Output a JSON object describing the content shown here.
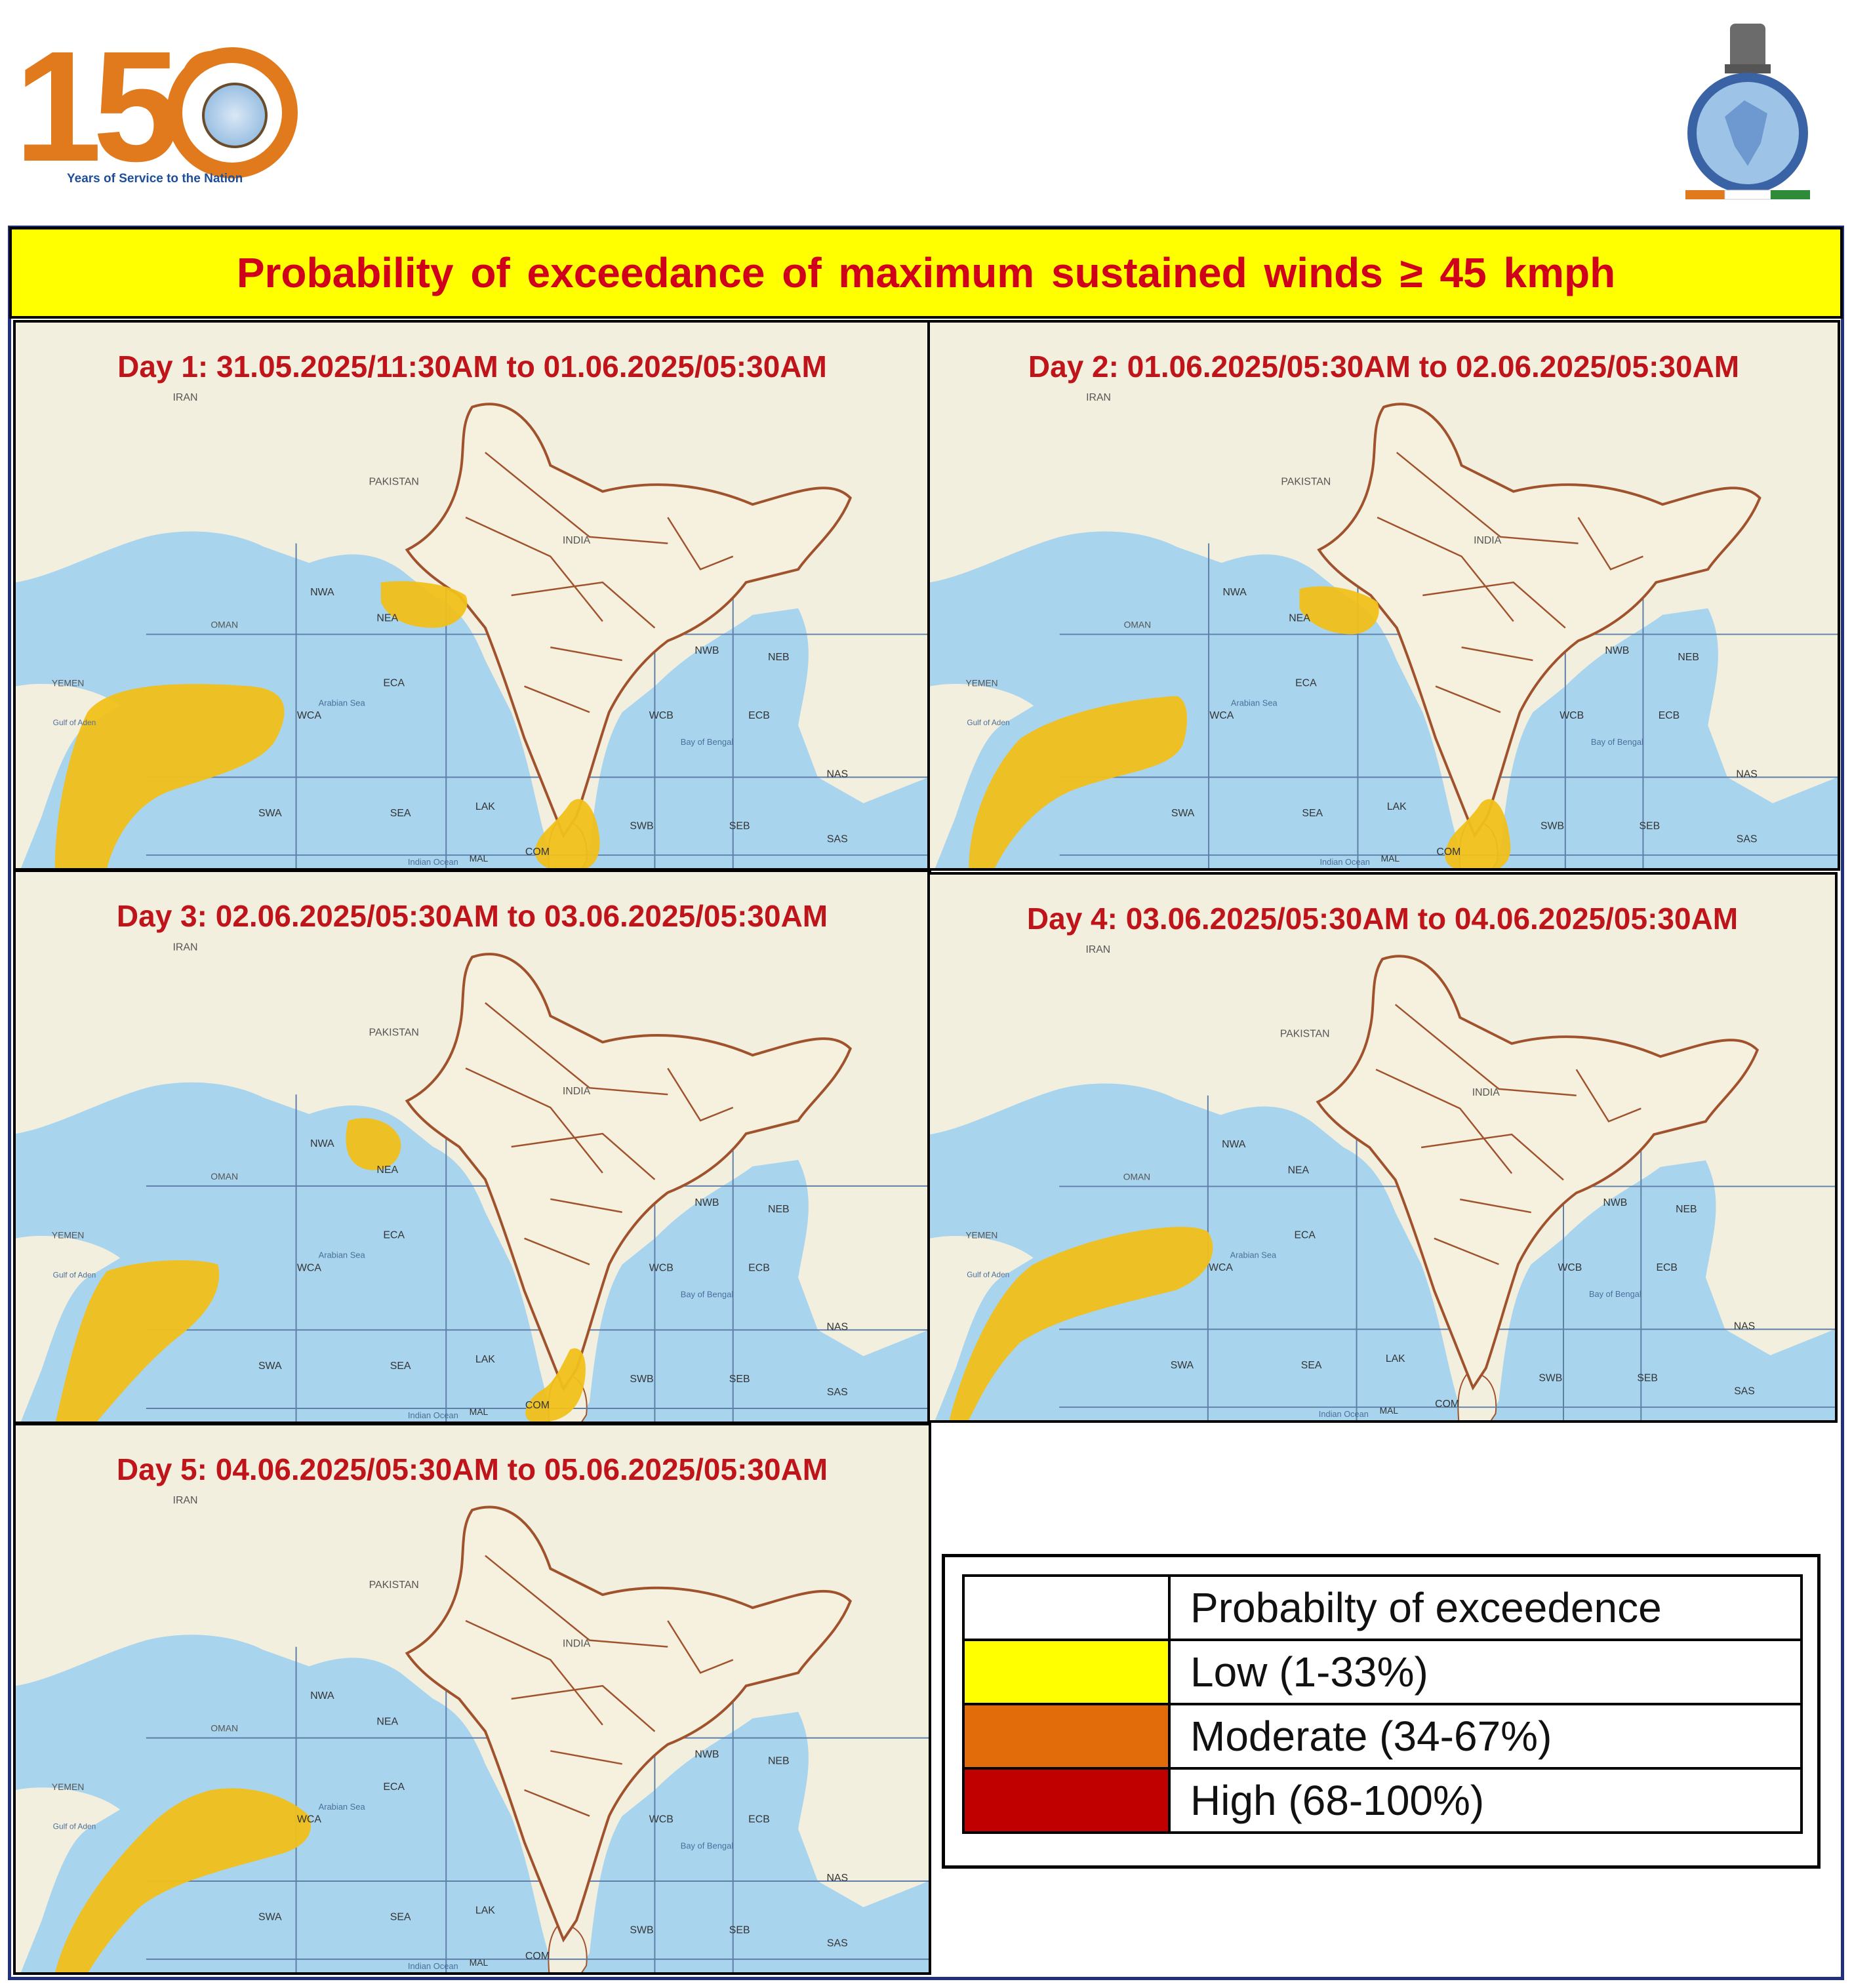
{
  "header": {
    "logo_number": "150",
    "logo_tagline": "Years of Service to the Nation",
    "title": "Probability  of exceedance of maximum  sustained  winds ≥ 45 kmph"
  },
  "panels": [
    {
      "label": "Day 1: 31.05.2025/11:30AM  to 01.06.2025/05:30AM"
    },
    {
      "label": "Day 2: 01.06.2025/05:30AM  to 02.06.2025/05:30AM"
    },
    {
      "label": "Day 3:  02.06.2025/05:30AM  to 03.06.2025/05:30AM"
    },
    {
      "label": "Day 4: 03.06.2025/05:30AM  to 04.06.2025/05:30AM"
    },
    {
      "label": "Day 5: 04.06.2025/05:30AM  to 05.06.2025/05:30AM"
    }
  ],
  "map_labels": {
    "iran": "IRAN",
    "pakistan": "PAKISTAN",
    "india": "INDIA",
    "nwa": "NWA",
    "nea": "NEA",
    "eca": "ECA",
    "wca": "WCA",
    "swa": "SWA",
    "sea": "SEA",
    "lak": "LAK",
    "mal": "MAL",
    "com": "COM",
    "nwb": "NWB",
    "neb": "NEB",
    "wcb": "WCB",
    "ecb": "ECB",
    "swb": "SWB",
    "seb": "SEB",
    "nas": "NAS",
    "sas": "SAS",
    "arabian_sea": "Arabian Sea",
    "bay_of_bengal": "Bay of Bengal",
    "indian_ocean": "Indian Ocean",
    "yemen": "YEMEN",
    "oman": "OMAN",
    "gulf_of_aden": "Gulf of Aden"
  },
  "legend": {
    "header": "Probabilty of exceedence",
    "rows": [
      {
        "label": "Low (1-33%)",
        "color": "#ffff00"
      },
      {
        "label": "Moderate (34-67%)",
        "color": "#e36c0a"
      },
      {
        "label": "High (68-100%)",
        "color": "#c00000"
      }
    ]
  },
  "colors": {
    "land": "#f3efdf",
    "sea": "#a9d4ee",
    "deep_sea": "#8fc6e8",
    "border": "#a0522d",
    "probability_fill": "#f0c01a",
    "title_bg": "#ffff00",
    "title_text": "#d0021b"
  }
}
